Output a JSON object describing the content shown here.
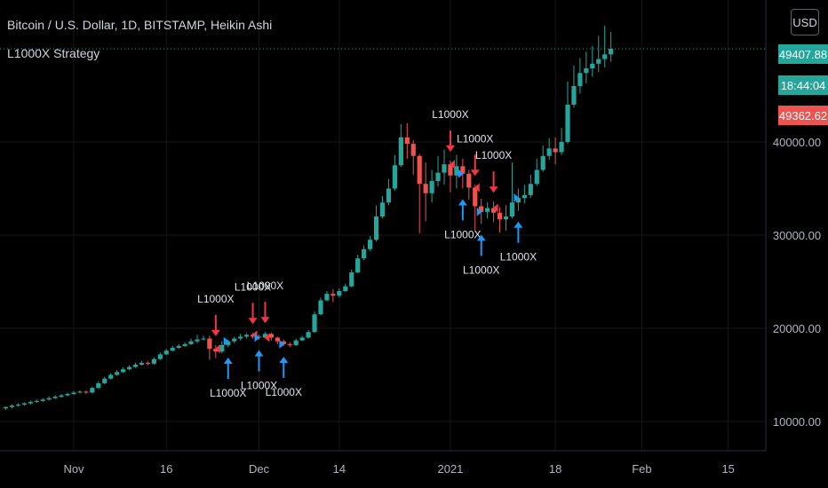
{
  "header": {
    "title": "Bitcoin / U.S. Dollar, 1D, BITSTAMP, Heikin Ashi",
    "indicator": "L1000X Strategy"
  },
  "price_axis": {
    "currency": "USD",
    "last_price": "49407.88",
    "countdown": "18:44:04",
    "other_price": "49362.62"
  },
  "colors": {
    "bull": "#26a69a",
    "bear": "#ef5350",
    "signal_down": "#f23645",
    "signal_up": "#2196f3",
    "last_tag": "#26a69a",
    "other_tag": "#ef5350"
  },
  "chart_data": {
    "type": "candlestick",
    "title": "Bitcoin / U.S. Dollar, 1D, BITSTAMP, Heikin Ashi",
    "ylim": [
      4000,
      56000
    ],
    "y_ticks": [
      10000,
      20000,
      30000,
      40000
    ],
    "y_tick_labels": [
      "10000.00",
      "20000.00",
      "30000.00",
      "40000.00"
    ],
    "x_tick_labels": [
      "Nov",
      "16",
      "Dec",
      "14",
      "2021",
      "18",
      "Feb",
      "15"
    ],
    "x_tick_days": [
      0,
      15,
      30,
      43,
      61,
      78,
      92,
      106
    ],
    "first_day_offset": -11,
    "candles": [
      [
        11400,
        11550,
        11250,
        11600
      ],
      [
        11550,
        11700,
        11400,
        11850
      ],
      [
        11700,
        11800,
        11600,
        11950
      ],
      [
        11800,
        11950,
        11700,
        12050
      ],
      [
        11950,
        12100,
        11800,
        12250
      ],
      [
        12100,
        12200,
        12000,
        12350
      ],
      [
        12200,
        12350,
        12100,
        12500
      ],
      [
        12350,
        12500,
        12250,
        12700
      ],
      [
        12500,
        12650,
        12400,
        12800
      ],
      [
        12650,
        12800,
        12550,
        12950
      ],
      [
        12800,
        12950,
        12700,
        13100
      ],
      [
        12950,
        13100,
        12850,
        13250
      ],
      [
        13100,
        13200,
        13000,
        13350
      ],
      [
        13200,
        13100,
        12950,
        13300
      ],
      [
        13100,
        13600,
        13000,
        13750
      ],
      [
        13600,
        14100,
        13500,
        14300
      ],
      [
        14100,
        14600,
        14000,
        14800
      ],
      [
        14600,
        15000,
        14500,
        15200
      ],
      [
        15000,
        15300,
        14900,
        15500
      ],
      [
        15300,
        15600,
        15200,
        15800
      ],
      [
        15600,
        15850,
        15500,
        16000
      ],
      [
        15850,
        16100,
        15750,
        16300
      ],
      [
        16100,
        16300,
        16000,
        16500
      ],
      [
        16300,
        16200,
        16050,
        16450
      ],
      [
        16200,
        16700,
        16100,
        16900
      ],
      [
        16700,
        17200,
        16600,
        17400
      ],
      [
        17200,
        17600,
        17100,
        17800
      ],
      [
        17600,
        17900,
        17500,
        18100
      ],
      [
        17900,
        18100,
        17800,
        18300
      ],
      [
        18100,
        18300,
        18000,
        18500
      ],
      [
        18300,
        18600,
        18200,
        18900
      ],
      [
        18600,
        18800,
        18400,
        19300
      ],
      [
        18800,
        18900,
        18700,
        19200
      ],
      [
        18900,
        17800,
        16600,
        19200
      ],
      [
        17800,
        17500,
        16800,
        18200
      ],
      [
        17500,
        18200,
        17300,
        18600
      ],
      [
        18200,
        18600,
        18000,
        18800
      ],
      [
        18600,
        18900,
        18400,
        19100
      ],
      [
        18900,
        19100,
        18700,
        19400
      ],
      [
        19100,
        19300,
        18900,
        19500
      ],
      [
        19300,
        19100,
        18900,
        19500
      ],
      [
        19100,
        19000,
        18800,
        19300
      ],
      [
        19000,
        19400,
        18900,
        19600
      ],
      [
        19400,
        19000,
        18700,
        19500
      ],
      [
        19000,
        18600,
        18300,
        19100
      ],
      [
        18600,
        18300,
        18100,
        18800
      ],
      [
        18300,
        18200,
        18000,
        18500
      ],
      [
        18200,
        18700,
        18100,
        18900
      ],
      [
        18700,
        19000,
        18600,
        19200
      ],
      [
        19000,
        19600,
        18900,
        19800
      ],
      [
        19600,
        21500,
        19500,
        21800
      ],
      [
        21500,
        23000,
        21400,
        23300
      ],
      [
        23000,
        23700,
        22900,
        24000
      ],
      [
        23700,
        23500,
        22800,
        24200
      ],
      [
        23500,
        24000,
        23300,
        24300
      ],
      [
        24000,
        24500,
        23900,
        24800
      ],
      [
        24500,
        26000,
        24400,
        26300
      ],
      [
        26000,
        27500,
        25900,
        27900
      ],
      [
        27500,
        28500,
        27300,
        28900
      ],
      [
        28500,
        29500,
        28300,
        29900
      ],
      [
        29500,
        32000,
        29300,
        33200
      ],
      [
        32000,
        33500,
        31800,
        34200
      ],
      [
        33500,
        35000,
        33200,
        36000
      ],
      [
        35000,
        37500,
        34800,
        38600
      ],
      [
        37500,
        40500,
        37300,
        41900
      ],
      [
        40500,
        39800,
        38200,
        42000
      ],
      [
        39800,
        38500,
        36500,
        40200
      ],
      [
        38500,
        35500,
        30200,
        38700
      ],
      [
        35500,
        34500,
        31500,
        37800
      ],
      [
        34500,
        35800,
        33500,
        37000
      ],
      [
        35800,
        36700,
        35200,
        38500
      ],
      [
        36700,
        37600,
        35400,
        39200
      ],
      [
        37600,
        36400,
        34600,
        38000
      ],
      [
        36400,
        37400,
        35000,
        38600
      ],
      [
        37400,
        36600,
        35000,
        38200
      ],
      [
        36600,
        35100,
        33800,
        37000
      ],
      [
        35100,
        33100,
        30500,
        35400
      ],
      [
        33100,
        32500,
        31200,
        33900
      ],
      [
        32500,
        32900,
        31800,
        33500
      ],
      [
        32900,
        32400,
        31400,
        33600
      ],
      [
        32400,
        31700,
        30300,
        33000
      ],
      [
        31700,
        32000,
        30500,
        33200
      ],
      [
        32000,
        33500,
        31800,
        37800
      ],
      [
        33500,
        34000,
        32600,
        35000
      ],
      [
        34000,
        34300,
        33400,
        35400
      ],
      [
        34300,
        35500,
        34000,
        36500
      ],
      [
        35500,
        37000,
        35300,
        38200
      ],
      [
        37000,
        38500,
        36800,
        39600
      ],
      [
        38500,
        39300,
        38100,
        40400
      ],
      [
        39300,
        38900,
        37600,
        40500
      ],
      [
        38900,
        40000,
        38600,
        41500
      ],
      [
        40000,
        44000,
        39800,
        46500
      ],
      [
        44000,
        46000,
        43700,
        48200
      ],
      [
        46000,
        47400,
        45200,
        49000
      ],
      [
        47400,
        47900,
        46300,
        49700
      ],
      [
        47900,
        48400,
        47000,
        50300
      ],
      [
        48400,
        48900,
        47500,
        51400
      ],
      [
        48900,
        49400,
        48000,
        52500
      ],
      [
        49400,
        50000,
        48600,
        51800
      ]
    ],
    "signals_sell": [
      {
        "day": 23,
        "text": "L1000X"
      },
      {
        "day": 29,
        "text": "L1000X"
      },
      {
        "day": 31,
        "text": "L1000X"
      },
      {
        "day": 61,
        "text": "L1000X"
      },
      {
        "day": 65,
        "text": "L1000X"
      },
      {
        "day": 68,
        "text": "L1000X"
      }
    ],
    "signals_buy": [
      {
        "day": 25,
        "text": "L1000X"
      },
      {
        "day": 30,
        "text": "L1000X"
      },
      {
        "day": 34,
        "text": "L1000X"
      },
      {
        "day": 63,
        "text": "L1000X"
      },
      {
        "day": 66,
        "text": "L1000X"
      },
      {
        "day": 72,
        "text": "L1000X"
      }
    ]
  }
}
